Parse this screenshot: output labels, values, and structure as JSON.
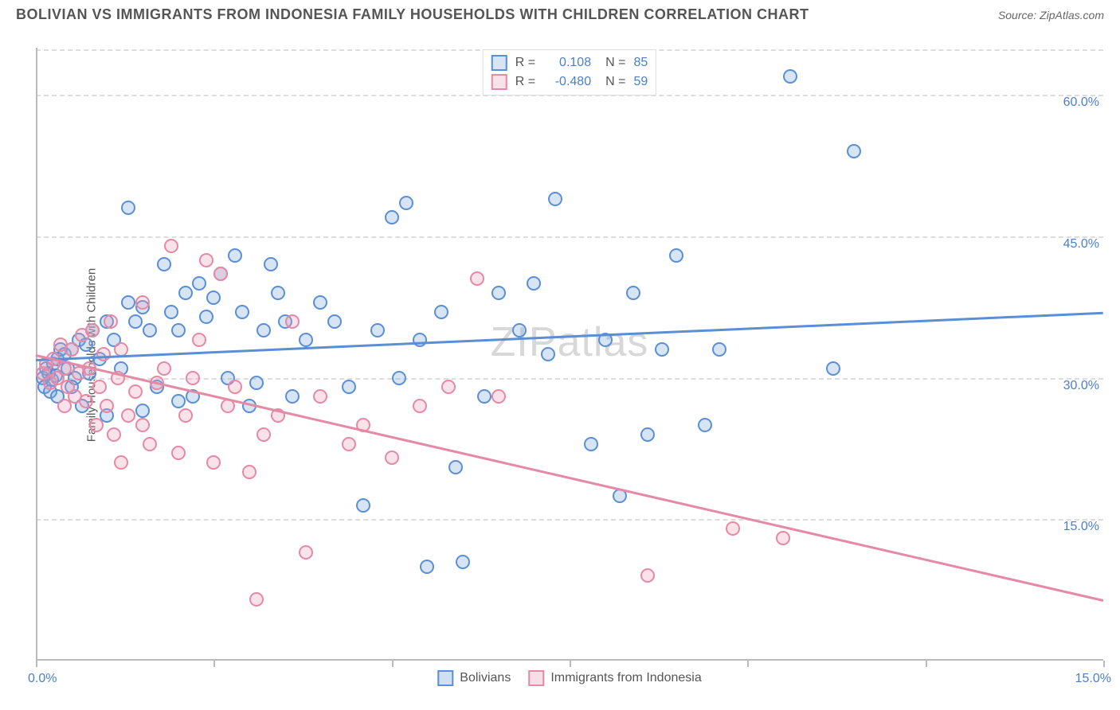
{
  "header": {
    "title": "BOLIVIAN VS IMMIGRANTS FROM INDONESIA FAMILY HOUSEHOLDS WITH CHILDREN CORRELATION CHART",
    "source": "Source: ZipAtlas.com"
  },
  "watermark": "ZIPatlas",
  "ylabel": "Family Households with Children",
  "chart": {
    "type": "scatter",
    "xlim": [
      0,
      15
    ],
    "ylim": [
      0,
      65
    ],
    "ytick_values": [
      15,
      30,
      45,
      60
    ],
    "ytick_labels": [
      "15.0%",
      "30.0%",
      "45.0%",
      "60.0%"
    ],
    "xtick_values": [
      0,
      2.5,
      5,
      7.5,
      10,
      12.5,
      15
    ],
    "xaxis_left_label": "0.0%",
    "xaxis_right_label": "15.0%",
    "background_color": "#ffffff",
    "grid_color": "#dddddd",
    "axis_color": "#bbbbbb",
    "marker_radius": 9,
    "marker_border_width": 2,
    "marker_fill_opacity": 0.25,
    "trend_line_width": 2.5
  },
  "series": [
    {
      "name": "Bolivians",
      "color": "#5a8fd6",
      "fill": "rgba(120,165,220,0.3)",
      "r_label": "R =",
      "r_value": "0.108",
      "n_label": "N =",
      "n_value": "85",
      "trend": {
        "x1": 0,
        "y1": 32.0,
        "x2": 15,
        "y2": 37.0
      },
      "points": [
        [
          0.1,
          30
        ],
        [
          0.15,
          31
        ],
        [
          0.12,
          29
        ],
        [
          0.18,
          30.5
        ],
        [
          0.2,
          28.5
        ],
        [
          0.25,
          31.5
        ],
        [
          0.22,
          29.8
        ],
        [
          0.3,
          32
        ],
        [
          0.28,
          30.2
        ],
        [
          0.35,
          33
        ],
        [
          0.3,
          28
        ],
        [
          0.4,
          32.5
        ],
        [
          0.45,
          31
        ],
        [
          0.5,
          33
        ],
        [
          0.55,
          30
        ],
        [
          0.6,
          34
        ],
        [
          0.5,
          29
        ],
        [
          0.65,
          27
        ],
        [
          0.7,
          33.5
        ],
        [
          0.75,
          30.5
        ],
        [
          0.8,
          35
        ],
        [
          0.9,
          32
        ],
        [
          1.0,
          36
        ],
        [
          1.1,
          34
        ],
        [
          1.2,
          31
        ],
        [
          1.3,
          38
        ],
        [
          1.4,
          36
        ],
        [
          1.5,
          37.5
        ],
        [
          1.3,
          48
        ],
        [
          1.6,
          35
        ],
        [
          1.7,
          29
        ],
        [
          1.8,
          42
        ],
        [
          1.9,
          37
        ],
        [
          2.0,
          35
        ],
        [
          2.1,
          39
        ],
        [
          2.2,
          28
        ],
        [
          2.3,
          40
        ],
        [
          2.4,
          36.5
        ],
        [
          2.5,
          38.5
        ],
        [
          2.6,
          41
        ],
        [
          2.7,
          30
        ],
        [
          2.8,
          43
        ],
        [
          2.9,
          37
        ],
        [
          3.0,
          27
        ],
        [
          3.1,
          29.5
        ],
        [
          3.2,
          35
        ],
        [
          3.3,
          42
        ],
        [
          3.4,
          39
        ],
        [
          3.5,
          36
        ],
        [
          3.6,
          28
        ],
        [
          3.8,
          34
        ],
        [
          4.0,
          38
        ],
        [
          4.2,
          36
        ],
        [
          4.4,
          29
        ],
        [
          4.6,
          16.5
        ],
        [
          4.8,
          35
        ],
        [
          5.0,
          47
        ],
        [
          5.2,
          48.5
        ],
        [
          5.1,
          30
        ],
        [
          5.4,
          34
        ],
        [
          5.5,
          10
        ],
        [
          5.7,
          37
        ],
        [
          5.9,
          20.5
        ],
        [
          6.0,
          10.5
        ],
        [
          6.3,
          28
        ],
        [
          6.5,
          39
        ],
        [
          6.8,
          35
        ],
        [
          7.0,
          40
        ],
        [
          7.2,
          32.5
        ],
        [
          7.3,
          49
        ],
        [
          7.8,
          23
        ],
        [
          8.0,
          34
        ],
        [
          8.2,
          17.5
        ],
        [
          8.4,
          39
        ],
        [
          8.6,
          24
        ],
        [
          8.8,
          33
        ],
        [
          9.0,
          43
        ],
        [
          9.4,
          25
        ],
        [
          9.6,
          33
        ],
        [
          11.2,
          31
        ],
        [
          10.6,
          62
        ],
        [
          11.5,
          54
        ],
        [
          1.0,
          26
        ],
        [
          1.5,
          26.5
        ],
        [
          2.0,
          27.5
        ]
      ]
    },
    {
      "name": "Immigrants from Indonesia",
      "color": "#e589a5",
      "fill": "rgba(235,160,185,0.3)",
      "r_label": "R =",
      "r_value": "-0.480",
      "n_label": "N =",
      "n_value": "59",
      "trend": {
        "x1": 0,
        "y1": 32.5,
        "x2": 15,
        "y2": 6.5
      },
      "points": [
        [
          0.1,
          30.5
        ],
        [
          0.15,
          31.5
        ],
        [
          0.2,
          29.5
        ],
        [
          0.25,
          32
        ],
        [
          0.3,
          30
        ],
        [
          0.35,
          33.5
        ],
        [
          0.4,
          31
        ],
        [
          0.4,
          27
        ],
        [
          0.45,
          29
        ],
        [
          0.5,
          33
        ],
        [
          0.55,
          28
        ],
        [
          0.6,
          30.5
        ],
        [
          0.65,
          34.5
        ],
        [
          0.7,
          27.5
        ],
        [
          0.75,
          31
        ],
        [
          0.8,
          35
        ],
        [
          0.85,
          25
        ],
        [
          0.9,
          29
        ],
        [
          0.95,
          32.5
        ],
        [
          1.0,
          27
        ],
        [
          1.05,
          36
        ],
        [
          1.1,
          24
        ],
        [
          1.15,
          30
        ],
        [
          1.2,
          33
        ],
        [
          1.3,
          26
        ],
        [
          1.4,
          28.5
        ],
        [
          1.5,
          38
        ],
        [
          1.6,
          23
        ],
        [
          1.7,
          29.5
        ],
        [
          1.8,
          31
        ],
        [
          1.9,
          44
        ],
        [
          2.0,
          22
        ],
        [
          2.1,
          26
        ],
        [
          2.2,
          30
        ],
        [
          2.3,
          34
        ],
        [
          2.4,
          42.5
        ],
        [
          2.5,
          21
        ],
        [
          2.6,
          41
        ],
        [
          2.7,
          27
        ],
        [
          2.8,
          29
        ],
        [
          3.0,
          20
        ],
        [
          3.1,
          6.5
        ],
        [
          3.2,
          24
        ],
        [
          3.4,
          26
        ],
        [
          3.6,
          36
        ],
        [
          3.8,
          11.5
        ],
        [
          4.0,
          28
        ],
        [
          4.4,
          23
        ],
        [
          4.6,
          25
        ],
        [
          5.0,
          21.5
        ],
        [
          5.4,
          27
        ],
        [
          5.8,
          29
        ],
        [
          6.2,
          40.5
        ],
        [
          6.5,
          28
        ],
        [
          8.6,
          9
        ],
        [
          9.8,
          14
        ],
        [
          10.5,
          13
        ],
        [
          1.2,
          21
        ],
        [
          1.5,
          25
        ]
      ]
    }
  ],
  "legend_bottom": {
    "items": [
      {
        "label": "Bolivians",
        "color": "#5a8fd6",
        "fill": "rgba(120,165,220,0.35)"
      },
      {
        "label": "Immigrants from Indonesia",
        "color": "#e589a5",
        "fill": "rgba(235,160,185,0.35)"
      }
    ]
  }
}
